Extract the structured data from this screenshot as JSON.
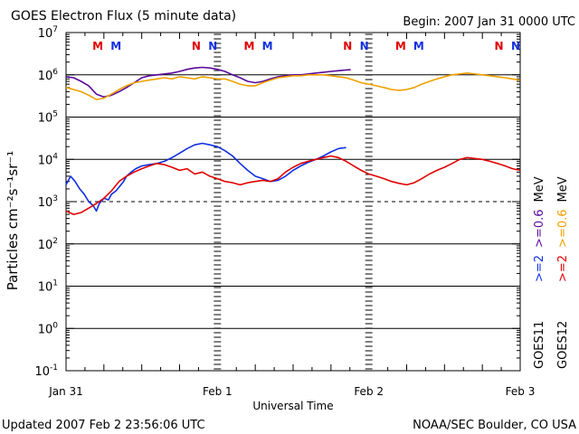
{
  "chart_data": {
    "type": "line",
    "title": "GOES Electron Flux (5 minute data)",
    "begin_label": "Begin: 2007 Jan 31 0000 UTC",
    "xlabel": "Universal Time",
    "ylabel": "Particles cm⁻²s⁻¹sr⁻¹",
    "x_axis_unit": "days since 2007 Jan 31 0000 UTC",
    "xlim": [
      0,
      3
    ],
    "x_ticks": [
      {
        "value": 0,
        "label": "Jan 31"
      },
      {
        "value": 1,
        "label": "Feb 1"
      },
      {
        "value": 2,
        "label": "Feb 2"
      },
      {
        "value": 3,
        "label": "Feb 3"
      }
    ],
    "y_scale": "log",
    "ylim": [
      0.1,
      10000000
    ],
    "y_ticks": [
      {
        "value": 0.1,
        "base": "10",
        "exp": "-1"
      },
      {
        "value": 1,
        "base": "10",
        "exp": "0"
      },
      {
        "value": 10,
        "base": "10",
        "exp": "1"
      },
      {
        "value": 100,
        "base": "10",
        "exp": "2"
      },
      {
        "value": 1000,
        "base": "10",
        "exp": "3"
      },
      {
        "value": 10000,
        "base": "10",
        "exp": "4"
      },
      {
        "value": 100000,
        "base": "10",
        "exp": "5"
      },
      {
        "value": 1000000,
        "base": "10",
        "exp": "6"
      },
      {
        "value": 10000000,
        "base": "10",
        "exp": "7"
      }
    ],
    "reference_lines": {
      "solid": [
        1000000,
        10000
      ],
      "dashed": [
        1000
      ]
    },
    "grid": true,
    "markers": [
      {
        "label": "M",
        "x": 0.21,
        "color": "#e00000"
      },
      {
        "label": "M",
        "x": 0.33,
        "color": "#1030e0"
      },
      {
        "label": "N",
        "x": 0.86,
        "color": "#e00000"
      },
      {
        "label": "N",
        "x": 0.97,
        "color": "#1030e0"
      },
      {
        "label": "M",
        "x": 1.21,
        "color": "#e00000"
      },
      {
        "label": "M",
        "x": 1.33,
        "color": "#1030e0"
      },
      {
        "label": "N",
        "x": 1.86,
        "color": "#e00000"
      },
      {
        "label": "N",
        "x": 1.97,
        "color": "#1030e0"
      },
      {
        "label": "M",
        "x": 2.21,
        "color": "#e00000"
      },
      {
        "label": "M",
        "x": 2.33,
        "color": "#1030e0"
      },
      {
        "label": "N",
        "x": 2.86,
        "color": "#e00000"
      },
      {
        "label": "N",
        "x": 2.97,
        "color": "#1030e0"
      }
    ],
    "series": [
      {
        "name": ">=0.6 MeV GOES11",
        "color": "#5a0a9a",
        "points": [
          [
            0,
            900000
          ],
          [
            0.05,
            850000
          ],
          [
            0.1,
            700000
          ],
          [
            0.15,
            550000
          ],
          [
            0.2,
            350000
          ],
          [
            0.25,
            300000
          ],
          [
            0.3,
            330000
          ],
          [
            0.35,
            400000
          ],
          [
            0.4,
            500000
          ],
          [
            0.45,
            650000
          ],
          [
            0.5,
            850000
          ],
          [
            0.55,
            950000
          ],
          [
            0.6,
            1000000
          ],
          [
            0.65,
            1050000
          ],
          [
            0.7,
            1100000
          ],
          [
            0.75,
            1200000
          ],
          [
            0.8,
            1350000
          ],
          [
            0.85,
            1450000
          ],
          [
            0.9,
            1500000
          ],
          [
            0.95,
            1450000
          ],
          [
            1.0,
            1350000
          ],
          [
            1.05,
            1200000
          ],
          [
            1.1,
            1000000
          ],
          [
            1.15,
            850000
          ],
          [
            1.2,
            700000
          ],
          [
            1.25,
            650000
          ],
          [
            1.3,
            700000
          ],
          [
            1.35,
            800000
          ],
          [
            1.4,
            900000
          ],
          [
            1.45,
            950000
          ],
          [
            1.5,
            1000000
          ],
          [
            1.55,
            1000000
          ],
          [
            1.6,
            1050000
          ],
          [
            1.65,
            1100000
          ],
          [
            1.7,
            1150000
          ],
          [
            1.75,
            1200000
          ],
          [
            1.8,
            1250000
          ],
          [
            1.85,
            1300000
          ],
          [
            1.88,
            1320000
          ]
        ]
      },
      {
        "name": ">=0.6 MeV GOES12",
        "color": "#f0a000",
        "points": [
          [
            0,
            500000
          ],
          [
            0.05,
            450000
          ],
          [
            0.1,
            400000
          ],
          [
            0.15,
            330000
          ],
          [
            0.2,
            260000
          ],
          [
            0.25,
            280000
          ],
          [
            0.3,
            350000
          ],
          [
            0.35,
            450000
          ],
          [
            0.4,
            550000
          ],
          [
            0.45,
            650000
          ],
          [
            0.5,
            700000
          ],
          [
            0.55,
            750000
          ],
          [
            0.6,
            800000
          ],
          [
            0.65,
            850000
          ],
          [
            0.7,
            800000
          ],
          [
            0.75,
            900000
          ],
          [
            0.8,
            850000
          ],
          [
            0.85,
            800000
          ],
          [
            0.9,
            900000
          ],
          [
            0.95,
            850000
          ],
          [
            1.0,
            800000
          ],
          [
            1.05,
            800000
          ],
          [
            1.1,
            700000
          ],
          [
            1.15,
            600000
          ],
          [
            1.2,
            550000
          ],
          [
            1.25,
            550000
          ],
          [
            1.3,
            650000
          ],
          [
            1.35,
            750000
          ],
          [
            1.4,
            850000
          ],
          [
            1.45,
            900000
          ],
          [
            1.5,
            950000
          ],
          [
            1.55,
            950000
          ],
          [
            1.6,
            1000000
          ],
          [
            1.65,
            1000000
          ],
          [
            1.7,
            1000000
          ],
          [
            1.75,
            950000
          ],
          [
            1.8,
            900000
          ],
          [
            1.85,
            850000
          ],
          [
            1.9,
            750000
          ],
          [
            1.95,
            650000
          ],
          [
            2.0,
            600000
          ],
          [
            2.05,
            550000
          ],
          [
            2.1,
            500000
          ],
          [
            2.15,
            450000
          ],
          [
            2.2,
            430000
          ],
          [
            2.25,
            450000
          ],
          [
            2.3,
            500000
          ],
          [
            2.35,
            600000
          ],
          [
            2.4,
            700000
          ],
          [
            2.45,
            800000
          ],
          [
            2.5,
            900000
          ],
          [
            2.55,
            1000000
          ],
          [
            2.6,
            1050000
          ],
          [
            2.65,
            1100000
          ],
          [
            2.7,
            1050000
          ],
          [
            2.75,
            1000000
          ],
          [
            2.8,
            950000
          ],
          [
            2.85,
            900000
          ],
          [
            2.9,
            850000
          ],
          [
            2.95,
            800000
          ],
          [
            3.0,
            750000
          ]
        ]
      },
      {
        "name": ">=2 MeV GOES11",
        "color": "#1030e0",
        "points": [
          [
            0,
            2500
          ],
          [
            0.03,
            4000
          ],
          [
            0.06,
            3000
          ],
          [
            0.09,
            2000
          ],
          [
            0.12,
            1500
          ],
          [
            0.15,
            1000
          ],
          [
            0.18,
            800
          ],
          [
            0.2,
            600
          ],
          [
            0.22,
            900
          ],
          [
            0.25,
            1200
          ],
          [
            0.28,
            1100
          ],
          [
            0.3,
            1500
          ],
          [
            0.33,
            1800
          ],
          [
            0.35,
            2200
          ],
          [
            0.38,
            3000
          ],
          [
            0.4,
            4000
          ],
          [
            0.43,
            5000
          ],
          [
            0.46,
            6000
          ],
          [
            0.5,
            7000
          ],
          [
            0.55,
            7500
          ],
          [
            0.6,
            8000
          ],
          [
            0.65,
            9000
          ],
          [
            0.7,
            11000
          ],
          [
            0.75,
            14000
          ],
          [
            0.8,
            18000
          ],
          [
            0.85,
            22000
          ],
          [
            0.9,
            24000
          ],
          [
            0.95,
            22000
          ],
          [
            1.0,
            20000
          ],
          [
            1.05,
            16000
          ],
          [
            1.1,
            12000
          ],
          [
            1.15,
            8000
          ],
          [
            1.2,
            5500
          ],
          [
            1.25,
            4000
          ],
          [
            1.3,
            3500
          ],
          [
            1.35,
            3000
          ],
          [
            1.4,
            3200
          ],
          [
            1.45,
            4000
          ],
          [
            1.5,
            5500
          ],
          [
            1.55,
            7000
          ],
          [
            1.6,
            8500
          ],
          [
            1.65,
            10000
          ],
          [
            1.7,
            12000
          ],
          [
            1.75,
            15000
          ],
          [
            1.8,
            18000
          ],
          [
            1.85,
            19000
          ]
        ]
      },
      {
        "name": ">=2 MeV GOES12",
        "color": "#e00000",
        "points": [
          [
            0,
            600
          ],
          [
            0.05,
            500
          ],
          [
            0.1,
            550
          ],
          [
            0.15,
            700
          ],
          [
            0.2,
            900
          ],
          [
            0.25,
            1200
          ],
          [
            0.3,
            1800
          ],
          [
            0.35,
            3000
          ],
          [
            0.4,
            4000
          ],
          [
            0.45,
            5000
          ],
          [
            0.5,
            6000
          ],
          [
            0.55,
            7000
          ],
          [
            0.6,
            8000
          ],
          [
            0.65,
            7500
          ],
          [
            0.7,
            6500
          ],
          [
            0.75,
            5500
          ],
          [
            0.8,
            6000
          ],
          [
            0.85,
            4500
          ],
          [
            0.9,
            5000
          ],
          [
            0.95,
            4000
          ],
          [
            1.0,
            3500
          ],
          [
            1.05,
            3000
          ],
          [
            1.1,
            2800
          ],
          [
            1.15,
            2500
          ],
          [
            1.2,
            2800
          ],
          [
            1.25,
            3000
          ],
          [
            1.3,
            3200
          ],
          [
            1.35,
            3000
          ],
          [
            1.4,
            3500
          ],
          [
            1.45,
            5000
          ],
          [
            1.5,
            6500
          ],
          [
            1.55,
            8000
          ],
          [
            1.6,
            9000
          ],
          [
            1.65,
            10000
          ],
          [
            1.7,
            11000
          ],
          [
            1.75,
            12000
          ],
          [
            1.8,
            11000
          ],
          [
            1.85,
            9000
          ],
          [
            1.9,
            7000
          ],
          [
            1.95,
            5500
          ],
          [
            2.0,
            4500
          ],
          [
            2.05,
            4000
          ],
          [
            2.1,
            3500
          ],
          [
            2.15,
            3000
          ],
          [
            2.2,
            2700
          ],
          [
            2.25,
            2500
          ],
          [
            2.3,
            2800
          ],
          [
            2.35,
            3500
          ],
          [
            2.4,
            4500
          ],
          [
            2.45,
            5500
          ],
          [
            2.5,
            6500
          ],
          [
            2.55,
            8000
          ],
          [
            2.6,
            10000
          ],
          [
            2.65,
            11000
          ],
          [
            2.7,
            10500
          ],
          [
            2.75,
            10000
          ],
          [
            2.8,
            9000
          ],
          [
            2.85,
            8000
          ],
          [
            2.9,
            7000
          ],
          [
            2.95,
            6000
          ],
          [
            3.0,
            5500
          ]
        ]
      }
    ],
    "legend": {
      "placement": "right",
      "columns": [
        {
          "lines": [
            {
              "label": ">=2",
              "color": "#1030e0"
            },
            {
              "label": ">=0.6",
              "color": "#5a0a9a"
            },
            {
              "label": "MeV",
              "color": "#000000"
            }
          ],
          "satellite": "GOES11"
        },
        {
          "lines": [
            {
              "label": ">=2",
              "color": "#e00000"
            },
            {
              "label": ">=0.6",
              "color": "#f0a000"
            },
            {
              "label": "MeV",
              "color": "#000000"
            }
          ],
          "satellite": "GOES12"
        }
      ]
    }
  },
  "footer": {
    "updated": "Updated 2007 Feb  2 23:56:06 UTC",
    "credit": "NOAA/SEC Boulder, CO USA"
  }
}
